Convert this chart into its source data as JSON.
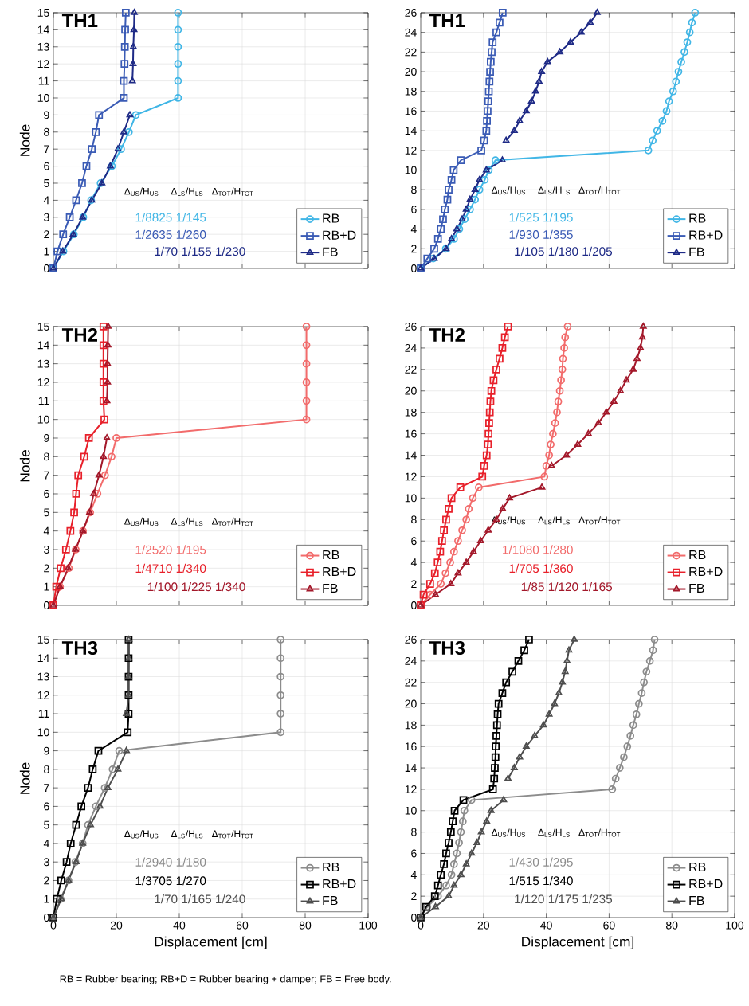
{
  "chart_data": [
    {
      "type": "line",
      "title": "TH1",
      "ylabel": "Node",
      "xlim": [
        0,
        100
      ],
      "ylim": [
        0,
        15
      ],
      "xticks": [
        0,
        20,
        40,
        60,
        80,
        100
      ],
      "yticks": [
        0,
        1,
        2,
        3,
        4,
        5,
        6,
        7,
        8,
        9,
        10,
        11,
        12,
        13,
        14,
        15
      ],
      "tick_labels": "y",
      "grid": true,
      "legend": "bottom right",
      "annotations": [
        "Δ$_{US}$/H$_{US}$",
        "Δ$_{LS}$/H$_{LS}$",
        "Δ$_{TOT}$/H$_{TOT}$",
        "1/8825 1/145",
        "1/2635 1/260",
        "1/70 1/155 1/230"
      ],
      "series": [
        {
          "name": "RB",
          "color": "#41b6e6",
          "marker": "circle",
          "x": [
            0,
            3.2,
            6.5,
            9.5,
            12,
            15,
            18.6,
            21.5,
            24,
            26.2,
            39.6,
            39.6,
            39.6,
            39.6,
            39.6,
            39.6
          ],
          "values": [
            0,
            1,
            2,
            3,
            4,
            5,
            6,
            7,
            8,
            9,
            10,
            11,
            12,
            13,
            14,
            15
          ]
        },
        {
          "name": "RB+D",
          "color": "#3a5bb5",
          "marker": "square",
          "x": [
            0,
            1.3,
            3.1,
            5.2,
            7.2,
            9.1,
            10.5,
            12.2,
            13.5,
            14.5,
            22.4,
            22.4,
            22.6,
            22.7,
            22.8,
            23
          ],
          "values": [
            0,
            1,
            2,
            3,
            4,
            5,
            6,
            7,
            8,
            9,
            10,
            11,
            12,
            13,
            14,
            15
          ]
        },
        {
          "name": "FB",
          "color": "#1e2a86",
          "marker": "triangle",
          "x": [
            0,
            3,
            6.3,
            9.3,
            12.2,
            15.4,
            18.1,
            20.5,
            22.4,
            24.3,
            null,
            25.1,
            25.3,
            25.4,
            25.6,
            25.7
          ],
          "values": [
            0,
            1,
            2,
            3,
            4,
            5,
            6,
            7,
            8,
            9,
            null,
            11,
            12,
            13,
            14,
            15
          ]
        }
      ]
    },
    {
      "type": "line",
      "title": "TH1",
      "xlim": [
        0,
        100
      ],
      "ylim": [
        0,
        26
      ],
      "xticks": [
        0,
        20,
        40,
        60,
        80,
        100
      ],
      "yticks": [
        0,
        2,
        4,
        6,
        8,
        10,
        12,
        14,
        16,
        18,
        20,
        22,
        24,
        26
      ],
      "tick_labels": "y",
      "grid": true,
      "legend": "bottom right",
      "annotations": [
        "Δ$_{US}$/H$_{US}$",
        "Δ$_{LS}$/H$_{LS}$",
        "Δ$_{TOT}$/H$_{TOT}$",
        "1/525 1/195",
        "1/930 1/355",
        "1/105 1/180 1/205"
      ],
      "series": [
        {
          "name": "RB",
          "color": "#41b6e6",
          "marker": "circle",
          "x": [
            0,
            4,
            8,
            10.6,
            12.3,
            14,
            15.7,
            17.3,
            18.7,
            20.4,
            21.7,
            23.8,
            72.5,
            73.9,
            75.3,
            77,
            78.3,
            79.1,
            80.4,
            81.3,
            82.1,
            83,
            84,
            84.9,
            85.7,
            86.4,
            87.4
          ],
          "values": [
            0,
            1,
            2,
            3,
            4,
            5,
            6,
            7,
            8,
            9,
            10,
            11,
            12,
            13,
            14,
            15,
            16,
            17,
            18,
            19,
            20,
            21,
            22,
            23,
            24,
            25,
            26
          ]
        },
        {
          "name": "RB+D",
          "color": "#3a5bb5",
          "marker": "square",
          "x": [
            0,
            2.1,
            4.3,
            5.5,
            6.4,
            7.1,
            7.7,
            8.5,
            8.9,
            9.8,
            10.5,
            12.8,
            19.3,
            20.2,
            20.9,
            21.1,
            21.3,
            21.5,
            21.7,
            21.9,
            22.1,
            22.3,
            22.6,
            22.9,
            24.1,
            25.1,
            26.1
          ],
          "values": [
            0,
            1,
            2,
            3,
            4,
            5,
            6,
            7,
            8,
            9,
            10,
            11,
            12,
            13,
            14,
            15,
            16,
            17,
            18,
            19,
            20,
            21,
            22,
            23,
            24,
            25,
            26
          ]
        },
        {
          "name": "FB",
          "color": "#1e2a86",
          "marker": "triangle",
          "x": [
            0,
            4.3,
            8.1,
            9.8,
            11.5,
            13.2,
            14.5,
            15.7,
            17.3,
            18.7,
            20.9,
            26,
            null,
            27.2,
            29.8,
            31.5,
            33.6,
            35.3,
            36.6,
            37.7,
            38.5,
            40.4,
            44.3,
            47.7,
            51.1,
            54,
            56.2
          ],
          "values": [
            0,
            1,
            2,
            3,
            4,
            5,
            6,
            7,
            8,
            9,
            10,
            11,
            null,
            13,
            14,
            15,
            16,
            17,
            18,
            19,
            20,
            21,
            22,
            23,
            24,
            25,
            26
          ]
        }
      ]
    },
    {
      "type": "line",
      "title": "TH2",
      "ylabel": "Node",
      "xlim": [
        0,
        100
      ],
      "ylim": [
        0,
        15
      ],
      "xticks": [
        0,
        20,
        40,
        60,
        80,
        100
      ],
      "yticks": [
        0,
        1,
        2,
        3,
        4,
        5,
        6,
        7,
        8,
        9,
        10,
        11,
        12,
        13,
        14,
        15
      ],
      "tick_labels": "y",
      "grid": true,
      "legend": "bottom right",
      "annotations": [
        "Δ$_{US}$/H$_{US}$",
        "Δ$_{LS}$/H$_{LS}$",
        "Δ$_{TOT}$/H$_{TOT}$",
        "1/2520 1/195",
        "1/4710 1/340",
        "1/100 1/225 1/340"
      ],
      "series": [
        {
          "name": "RB",
          "color": "#f26b6b",
          "marker": "circle",
          "x": [
            0,
            2.1,
            4.9,
            7.1,
            9.4,
            11.7,
            14,
            16.4,
            18.5,
            20,
            80.4,
            80.4,
            80.4,
            80.4,
            80.4,
            80.4
          ],
          "values": [
            0,
            1,
            2,
            3,
            4,
            5,
            6,
            7,
            8,
            9,
            10,
            11,
            12,
            13,
            14,
            15
          ]
        },
        {
          "name": "RB+D",
          "color": "#e8202a",
          "marker": "square",
          "x": [
            0,
            0.9,
            2.3,
            4,
            5.4,
            6.6,
            7.2,
            7.9,
            9.8,
            11.3,
            16.2,
            15.9,
            15.9,
            15.9,
            15.9,
            15.9
          ],
          "values": [
            0,
            1,
            2,
            3,
            4,
            5,
            6,
            7,
            8,
            9,
            10,
            11,
            12,
            13,
            14,
            15
          ]
        },
        {
          "name": "FB",
          "color": "#a3182a",
          "marker": "triangle",
          "x": [
            0,
            2.1,
            4.7,
            7,
            9.4,
            11.5,
            12.8,
            14.5,
            15.9,
            17,
            null,
            17,
            17.2,
            17.2,
            17.3,
            17.4
          ],
          "values": [
            0,
            1,
            2,
            3,
            4,
            5,
            6,
            7,
            8,
            9,
            null,
            11,
            12,
            13,
            14,
            15
          ]
        }
      ]
    },
    {
      "type": "line",
      "title": "TH2",
      "xlim": [
        0,
        100
      ],
      "ylim": [
        0,
        26
      ],
      "xticks": [
        0,
        20,
        40,
        60,
        80,
        100
      ],
      "yticks": [
        0,
        2,
        4,
        6,
        8,
        10,
        12,
        14,
        16,
        18,
        20,
        22,
        24,
        26
      ],
      "tick_labels": "y",
      "grid": true,
      "legend": "bottom right",
      "annotations": [
        "Δ$_{US}$/H$_{US}$",
        "Δ$_{LS}$/H$_{LS}$",
        "Δ$_{TOT}$/H$_{TOT}$",
        "1/1080 1/280",
        "1/705 1/360",
        "1/85 1/120 1/165"
      ],
      "series": [
        {
          "name": "RB",
          "color": "#f26b6b",
          "marker": "circle",
          "x": [
            0,
            3,
            6.4,
            7.9,
            9.4,
            10.6,
            11.9,
            13.2,
            14.5,
            15.3,
            16.6,
            18.5,
            39.4,
            40,
            40.9,
            41.4,
            42.1,
            42.8,
            43.4,
            43.8,
            44.3,
            44.7,
            45.1,
            45.3,
            45.7,
            46,
            46.8
          ],
          "values": [
            0,
            1,
            2,
            3,
            4,
            5,
            6,
            7,
            8,
            9,
            10,
            11,
            12,
            13,
            14,
            15,
            16,
            17,
            18,
            19,
            20,
            21,
            22,
            23,
            24,
            25,
            26
          ]
        },
        {
          "name": "RB+D",
          "color": "#e8202a",
          "marker": "square",
          "x": [
            0,
            0.9,
            3,
            4.5,
            5.4,
            6.2,
            6.8,
            7.4,
            8.1,
            8.9,
            9.8,
            12.6,
            19.6,
            20.2,
            21,
            21.4,
            21.6,
            21.8,
            22,
            22.2,
            22.5,
            23.2,
            24.1,
            25.1,
            26,
            26.8,
            27.8
          ],
          "values": [
            0,
            1,
            2,
            3,
            4,
            5,
            6,
            7,
            8,
            9,
            10,
            11,
            12,
            13,
            14,
            15,
            16,
            17,
            18,
            19,
            20,
            21,
            22,
            23,
            24,
            25,
            26
          ]
        },
        {
          "name": "FB",
          "color": "#a3182a",
          "marker": "triangle",
          "x": [
            0,
            4.7,
            9.6,
            11.9,
            14.5,
            16.8,
            19.1,
            21.5,
            24.1,
            26.1,
            28.3,
            38.6,
            null,
            41.7,
            46.4,
            50,
            53.4,
            56.6,
            59.1,
            61.5,
            63.6,
            65.5,
            67.7,
            68.9,
            70,
            70.6,
            70.9
          ],
          "values": [
            0,
            1,
            2,
            3,
            4,
            5,
            6,
            7,
            8,
            9,
            10,
            11,
            null,
            13,
            14,
            15,
            16,
            17,
            18,
            19,
            20,
            21,
            22,
            23,
            24,
            25,
            26
          ]
        }
      ]
    },
    {
      "type": "line",
      "title": "TH3",
      "xlabel": "Displacement [cm]",
      "ylabel": "Node",
      "xlim": [
        0,
        100
      ],
      "ylim": [
        0,
        15
      ],
      "xticks": [
        0,
        20,
        40,
        60,
        80,
        100
      ],
      "yticks": [
        0,
        1,
        2,
        3,
        4,
        5,
        6,
        7,
        8,
        9,
        10,
        11,
        12,
        13,
        14,
        15
      ],
      "grid": true,
      "legend": "bottom right",
      "annotations": [
        "Δ$_{US}$/H$_{US}$",
        "Δ$_{LS}$/H$_{LS}$",
        "Δ$_{TOT}$/H$_{TOT}$",
        "1/2940 1/180",
        "1/3705 1/270",
        "1/70 1/165 1/240"
      ],
      "series": [
        {
          "name": "RB",
          "color": "#8c8c8c",
          "marker": "circle",
          "x": [
            0,
            2.3,
            4.8,
            7,
            9.3,
            11,
            13.5,
            16.3,
            18.8,
            20.9,
            72.2,
            72.2,
            72.2,
            72.2,
            72.2,
            72.2
          ],
          "values": [
            0,
            1,
            2,
            3,
            4,
            5,
            6,
            7,
            8,
            9,
            10,
            11,
            12,
            13,
            14,
            15
          ]
        },
        {
          "name": "RB+D",
          "color": "#000000",
          "marker": "square",
          "x": [
            0,
            1.1,
            2.5,
            4.2,
            5.5,
            7.2,
            8.9,
            11,
            12.5,
            14.3,
            23.6,
            23.9,
            23.9,
            23.9,
            23.9,
            23.9
          ],
          "values": [
            0,
            1,
            2,
            3,
            4,
            5,
            6,
            7,
            8,
            9,
            10,
            11,
            12,
            13,
            14,
            15
          ]
        },
        {
          "name": "FB",
          "color": "#4d4d4d",
          "marker": "triangle",
          "x": [
            0,
            2.5,
            4.8,
            7.2,
            9.3,
            11.8,
            14.8,
            17.3,
            20.5,
            23.2,
            null,
            23.2,
            23.9,
            23.9,
            24,
            24
          ],
          "values": [
            0,
            1,
            2,
            3,
            4,
            5,
            6,
            7,
            8,
            9,
            null,
            11,
            12,
            13,
            14,
            15
          ]
        }
      ]
    },
    {
      "type": "line",
      "title": "TH3",
      "xlabel": "Displacement [cm]",
      "xlim": [
        0,
        100
      ],
      "ylim": [
        0,
        26
      ],
      "xticks": [
        0,
        20,
        40,
        60,
        80,
        100
      ],
      "yticks": [
        0,
        2,
        4,
        6,
        8,
        10,
        12,
        14,
        16,
        18,
        20,
        22,
        24,
        26
      ],
      "grid": true,
      "legend": "bottom right",
      "annotations": [
        "Δ$_{US}$/H$_{US}$",
        "Δ$_{LS}$/H$_{LS}$",
        "Δ$_{TOT}$/H$_{TOT}$",
        "1/430 1/295",
        "1/515 1/340",
        "1/120 1/175 1/235",
        "RB = Rubber bearing; RB+D = Rubber bearing + damper; FB = Free body."
      ],
      "series": [
        {
          "name": "RB",
          "color": "#8c8c8c",
          "marker": "circle",
          "x": [
            0,
            2.1,
            5.5,
            8.1,
            9.8,
            10.6,
            11.5,
            12.2,
            12.8,
            13.4,
            13.9,
            16.2,
            61,
            62.1,
            63.4,
            64.7,
            65.8,
            66.8,
            67.7,
            68.7,
            69.5,
            70.4,
            71.1,
            71.9,
            73,
            74,
            74.5
          ],
          "values": [
            0,
            1,
            2,
            3,
            4,
            5,
            6,
            7,
            8,
            9,
            10,
            11,
            12,
            13,
            14,
            15,
            16,
            17,
            18,
            19,
            20,
            21,
            22,
            23,
            24,
            25,
            26
          ]
        },
        {
          "name": "RB+D",
          "color": "#000000",
          "marker": "square",
          "x": [
            0,
            1.7,
            4.5,
            5.5,
            6.4,
            7.4,
            8.1,
            8.9,
            9.6,
            10.2,
            10.8,
            13.6,
            23,
            23.4,
            23.6,
            23.8,
            23.9,
            24.1,
            24.3,
            24.5,
            24.8,
            26,
            27.2,
            29.2,
            31.1,
            33,
            34.5
          ],
          "values": [
            0,
            1,
            2,
            3,
            4,
            5,
            6,
            7,
            8,
            9,
            10,
            11,
            12,
            13,
            14,
            15,
            16,
            17,
            18,
            19,
            20,
            21,
            22,
            23,
            24,
            25,
            26
          ]
        },
        {
          "name": "FB",
          "color": "#4d4d4d",
          "marker": "triangle",
          "x": [
            0,
            4.7,
            8.9,
            10.6,
            12.8,
            14.5,
            16.2,
            17.9,
            19.3,
            21,
            22.4,
            26.4,
            null,
            27.8,
            29.8,
            31.5,
            33.6,
            36.3,
            39.1,
            40.9,
            42.6,
            44,
            45.1,
            46,
            46.6,
            47.2,
            48.9
          ],
          "values": [
            0,
            1,
            2,
            3,
            4,
            5,
            6,
            7,
            8,
            9,
            10,
            11,
            null,
            13,
            14,
            15,
            16,
            17,
            18,
            19,
            20,
            21,
            22,
            23,
            24,
            25,
            26
          ]
        }
      ]
    }
  ]
}
